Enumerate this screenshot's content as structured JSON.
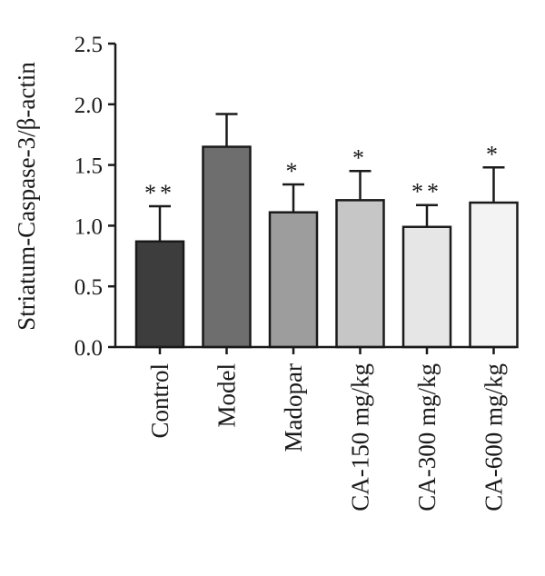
{
  "chart_data": {
    "type": "bar",
    "title": "",
    "xlabel": "",
    "ylabel": "Striatum-Caspase-3/β-actin",
    "ylim": [
      0,
      2.5
    ],
    "yticks": [
      "0.0",
      "0.5",
      "1.0",
      "1.5",
      "2.0",
      "2.5"
    ],
    "grid": false,
    "categories": [
      "Control",
      "Model",
      "Madopar",
      "CA-150 mg/kg",
      "CA-300 mg/kg",
      "CA-600 mg/kg"
    ],
    "values": [
      0.87,
      1.65,
      1.11,
      1.21,
      0.99,
      1.19
    ],
    "error_upper": [
      1.16,
      1.92,
      1.34,
      1.45,
      1.17,
      1.48
    ],
    "significance": [
      "**",
      "",
      "*",
      "*",
      "**",
      "*"
    ],
    "bar_colors": [
      "#3d3d3d",
      "#6e6e6e",
      "#9d9d9d",
      "#c6c6c6",
      "#e6e6e6",
      "#f3f3f3"
    ]
  }
}
